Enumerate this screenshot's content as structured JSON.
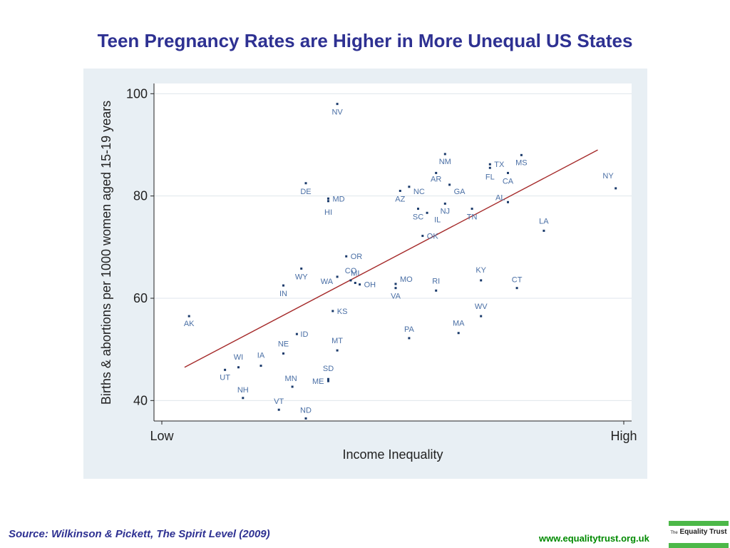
{
  "title": "Teen Pregnancy Rates are Higher in More Unequal US States",
  "source": "Source: Wilkinson & Pickett, The Spirit Level (2009)",
  "website": "www.equalitytrust.org.uk",
  "logo": {
    "prefix": "The",
    "name": "Equality Trust"
  },
  "colors": {
    "title": "#2e3192",
    "panel": "#e8eff4",
    "points": "#1a3a6b",
    "labels": "#4a6fa5",
    "fit_line": "#a52a2a",
    "website": "#008a00",
    "logo_green": "#4cb848"
  },
  "chart_data": {
    "type": "scatter",
    "xlabel": "Income Inequality",
    "ylabel": "Births & abortions per 1000 women aged 15-19 years",
    "xticks": [
      "Low",
      "High"
    ],
    "yticks": [
      40,
      60,
      80,
      100
    ],
    "ylim": [
      36,
      102
    ],
    "xlim": [
      0,
      100
    ],
    "grid": true,
    "fit_line": {
      "x": [
        3,
        95
      ],
      "y": [
        46.5,
        89
      ]
    },
    "points": [
      {
        "label": "AK",
        "x": 4,
        "y": 56.5
      },
      {
        "label": "UT",
        "x": 12,
        "y": 46
      },
      {
        "label": "WI",
        "x": 15,
        "y": 46.5
      },
      {
        "label": "NH",
        "x": 16,
        "y": 40.5
      },
      {
        "label": "IA",
        "x": 20,
        "y": 46.8
      },
      {
        "label": "VT",
        "x": 24,
        "y": 38.2
      },
      {
        "label": "IN",
        "x": 25,
        "y": 62.5
      },
      {
        "label": "NE",
        "x": 25,
        "y": 49.2
      },
      {
        "label": "MN",
        "x": 27,
        "y": 42.7
      },
      {
        "label": "ID",
        "x": 28,
        "y": 53
      },
      {
        "label": "WY",
        "x": 29,
        "y": 65.8
      },
      {
        "label": "DE",
        "x": 30,
        "y": 82.5
      },
      {
        "label": "ND",
        "x": 30,
        "y": 36.5
      },
      {
        "label": "MD",
        "x": 35,
        "y": 79.5
      },
      {
        "label": "HI",
        "x": 35,
        "y": 79
      },
      {
        "label": "ME",
        "x": 35,
        "y": 43.8
      },
      {
        "label": "SD",
        "x": 35,
        "y": 44.2
      },
      {
        "label": "KS",
        "x": 36,
        "y": 57.5
      },
      {
        "label": "NV",
        "x": 37,
        "y": 98
      },
      {
        "label": "WA",
        "x": 37,
        "y": 64.2
      },
      {
        "label": "MT",
        "x": 37,
        "y": 49.8
      },
      {
        "label": "OR",
        "x": 39,
        "y": 68.2
      },
      {
        "label": "CO",
        "x": 40,
        "y": 63.5
      },
      {
        "label": "MI",
        "x": 41,
        "y": 63
      },
      {
        "label": "OH",
        "x": 42,
        "y": 62.7
      },
      {
        "label": "MO",
        "x": 50,
        "y": 62.8
      },
      {
        "label": "VA",
        "x": 50,
        "y": 62
      },
      {
        "label": "AZ",
        "x": 51,
        "y": 81
      },
      {
        "label": "NC",
        "x": 53,
        "y": 81.8
      },
      {
        "label": "PA",
        "x": 53,
        "y": 52.2
      },
      {
        "label": "SC",
        "x": 55,
        "y": 77.5
      },
      {
        "label": "OK",
        "x": 56,
        "y": 72.2
      },
      {
        "label": "IL",
        "x": 57,
        "y": 76.7
      },
      {
        "label": "RI",
        "x": 59,
        "y": 61.5
      },
      {
        "label": "AR",
        "x": 59,
        "y": 84.5
      },
      {
        "label": "NJ",
        "x": 61,
        "y": 78.5
      },
      {
        "label": "NM",
        "x": 61,
        "y": 88.2
      },
      {
        "label": "GA",
        "x": 62,
        "y": 82.2
      },
      {
        "label": "MA",
        "x": 64,
        "y": 53.2
      },
      {
        "label": "TN",
        "x": 67,
        "y": 77.5
      },
      {
        "label": "KY",
        "x": 69,
        "y": 63.5
      },
      {
        "label": "WV",
        "x": 69,
        "y": 56.5
      },
      {
        "label": "TX",
        "x": 71,
        "y": 86.2
      },
      {
        "label": "FL",
        "x": 71,
        "y": 85.5
      },
      {
        "label": "CA",
        "x": 75,
        "y": 84.5
      },
      {
        "label": "AL",
        "x": 75,
        "y": 78.8
      },
      {
        "label": "CT",
        "x": 77,
        "y": 62
      },
      {
        "label": "MS",
        "x": 78,
        "y": 88
      },
      {
        "label": "LA",
        "x": 83,
        "y": 73.2
      },
      {
        "label": "NY",
        "x": 99,
        "y": 81.5
      }
    ]
  }
}
